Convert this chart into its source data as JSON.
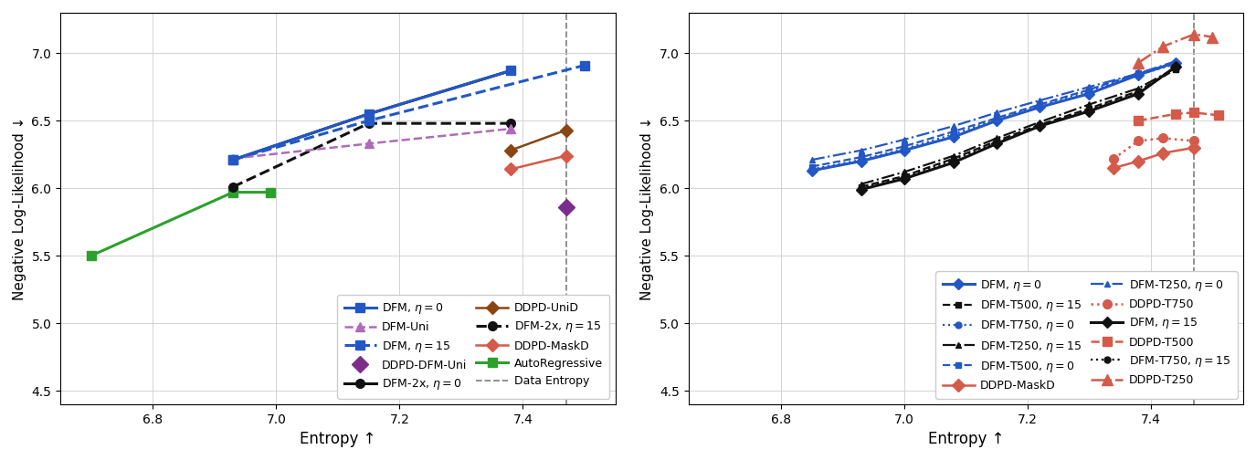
{
  "left_plot": {
    "xlabel": "Entropy ↑",
    "ylabel": "Negative Log-Likelihood ↓",
    "xlim": [
      6.65,
      7.55
    ],
    "ylim": [
      4.4,
      7.3
    ],
    "xticks": [
      6.8,
      7.0,
      7.2,
      7.4
    ],
    "yticks": [
      4.5,
      5.0,
      5.5,
      6.0,
      6.5,
      7.0
    ],
    "data_entropy_x": 7.47,
    "series": [
      {
        "label": "DFM, η = 0",
        "x": [
          6.93,
          7.15,
          7.38
        ],
        "y": [
          6.21,
          6.55,
          6.87
        ],
        "color": "#2257c5",
        "linestyle": "-",
        "marker": "s",
        "linewidth": 2.2,
        "markersize": 7,
        "zorder": 5
      },
      {
        "label": "DFM, η = 15",
        "x": [
          6.93,
          7.15,
          7.5
        ],
        "y": [
          6.21,
          6.5,
          6.91
        ],
        "color": "#2257c5",
        "linestyle": "--",
        "marker": "s",
        "linewidth": 2.2,
        "markersize": 7,
        "zorder": 4
      },
      {
        "label": "DFM-2x, η = 0",
        "x": [
          6.93,
          7.15,
          7.38
        ],
        "y": [
          6.21,
          6.55,
          6.87
        ],
        "color": "#111111",
        "linestyle": "-",
        "marker": "o",
        "linewidth": 2.2,
        "markersize": 7,
        "zorder": 3
      },
      {
        "label": "DFM-2x, η = 15",
        "x": [
          6.93,
          7.15,
          7.38
        ],
        "y": [
          6.01,
          6.48,
          6.48
        ],
        "color": "#111111",
        "linestyle": "--",
        "marker": "o",
        "linewidth": 2.2,
        "markersize": 7,
        "zorder": 3
      },
      {
        "label": "AutoRegressive",
        "x": [
          6.7,
          6.93,
          6.99
        ],
        "y": [
          5.5,
          5.97,
          5.97
        ],
        "color": "#2ca02c",
        "linestyle": "-",
        "marker": "s",
        "linewidth": 2.2,
        "markersize": 7,
        "zorder": 2
      },
      {
        "label": "DFM-Uni",
        "x": [
          6.93,
          7.15,
          7.38
        ],
        "y": [
          6.22,
          6.33,
          6.44
        ],
        "color": "#b06aba",
        "linestyle": "--",
        "marker": "^",
        "linewidth": 1.8,
        "markersize": 7,
        "zorder": 4
      },
      {
        "label": "DDPD-DFM-Uni",
        "x": [
          7.47
        ],
        "y": [
          5.86
        ],
        "color": "#7b2d8b",
        "linestyle": "none",
        "marker": "D",
        "linewidth": 1.5,
        "markersize": 9,
        "zorder": 5
      },
      {
        "label": "DDPD-UniD",
        "x": [
          7.38,
          7.47
        ],
        "y": [
          6.28,
          6.43
        ],
        "color": "#8b4513",
        "linestyle": "-",
        "marker": "D",
        "linewidth": 1.8,
        "markersize": 7,
        "zorder": 4
      },
      {
        "label": "DDPD-MaskD",
        "x": [
          7.38,
          7.47
        ],
        "y": [
          6.14,
          6.24
        ],
        "color": "#d45a4a",
        "linestyle": "-",
        "marker": "D",
        "linewidth": 1.8,
        "markersize": 7,
        "zorder": 4
      }
    ]
  },
  "right_plot": {
    "xlabel": "Entropy ↑",
    "ylabel": "Negative Log-Likelihood ↓",
    "xlim": [
      6.65,
      7.55
    ],
    "ylim": [
      4.4,
      7.3
    ],
    "xticks": [
      6.8,
      7.0,
      7.2,
      7.4
    ],
    "yticks": [
      4.5,
      5.0,
      5.5,
      6.0,
      6.5,
      7.0
    ],
    "data_entropy_x": 7.47,
    "series": [
      {
        "label": "DFM, η = 0",
        "x": [
          6.85,
          6.93,
          7.0,
          7.08,
          7.15,
          7.22,
          7.3,
          7.38,
          7.44
        ],
        "y": [
          6.13,
          6.2,
          6.28,
          6.38,
          6.5,
          6.6,
          6.7,
          6.84,
          6.93
        ],
        "color": "#2257c5",
        "linestyle": "-",
        "marker": "D",
        "linewidth": 2.2,
        "markersize": 6,
        "zorder": 5
      },
      {
        "label": "DFM-T750, η = 0",
        "x": [
          6.85,
          6.93,
          7.0,
          7.08,
          7.15,
          7.22,
          7.3,
          7.38,
          7.44
        ],
        "y": [
          6.14,
          6.21,
          6.29,
          6.4,
          6.51,
          6.61,
          6.72,
          6.84,
          6.92
        ],
        "color": "#2257c5",
        "linestyle": ":",
        "marker": "o",
        "linewidth": 1.6,
        "markersize": 5,
        "zorder": 4
      },
      {
        "label": "DFM-T500, η = 0",
        "x": [
          6.85,
          6.93,
          7.0,
          7.08,
          7.15,
          7.22,
          7.3,
          7.38,
          7.44
        ],
        "y": [
          6.16,
          6.23,
          6.31,
          6.42,
          6.52,
          6.62,
          6.73,
          6.85,
          6.93
        ],
        "color": "#2257c5",
        "linestyle": "--",
        "marker": "s",
        "linewidth": 1.6,
        "markersize": 5,
        "zorder": 4
      },
      {
        "label": "DFM-T250, η = 0",
        "x": [
          6.85,
          6.93,
          7.0,
          7.08,
          7.15,
          7.22,
          7.3,
          7.38,
          7.44
        ],
        "y": [
          6.21,
          6.28,
          6.36,
          6.46,
          6.56,
          6.65,
          6.75,
          6.85,
          6.94
        ],
        "color": "#2257c5",
        "linestyle": "-.",
        "marker": "^",
        "linewidth": 1.6,
        "markersize": 5,
        "zorder": 4
      },
      {
        "label": "DFM, η = 15",
        "x": [
          6.93,
          7.0,
          7.08,
          7.15,
          7.22,
          7.3,
          7.38,
          7.44
        ],
        "y": [
          5.99,
          6.07,
          6.19,
          6.33,
          6.46,
          6.57,
          6.7,
          6.9
        ],
        "color": "#111111",
        "linestyle": "-",
        "marker": "D",
        "linewidth": 2.2,
        "markersize": 6,
        "zorder": 5
      },
      {
        "label": "DFM-T750, η = 15",
        "x": [
          6.93,
          7.0,
          7.08,
          7.15,
          7.22,
          7.3,
          7.38,
          7.44
        ],
        "y": [
          6.0,
          6.08,
          6.21,
          6.34,
          6.46,
          6.58,
          6.71,
          6.89
        ],
        "color": "#111111",
        "linestyle": ":",
        "marker": "o",
        "linewidth": 1.6,
        "markersize": 5,
        "zorder": 4
      },
      {
        "label": "DFM-T500, η = 15",
        "x": [
          6.93,
          7.0,
          7.08,
          7.15,
          7.22,
          7.3,
          7.38,
          7.44
        ],
        "y": [
          6.01,
          6.09,
          6.22,
          6.35,
          6.47,
          6.59,
          6.72,
          6.88
        ],
        "color": "#111111",
        "linestyle": "--",
        "marker": "s",
        "linewidth": 1.6,
        "markersize": 5,
        "zorder": 4
      },
      {
        "label": "DFM-T250, η = 15",
        "x": [
          6.93,
          7.0,
          7.08,
          7.15,
          7.22,
          7.3,
          7.38,
          7.44
        ],
        "y": [
          6.03,
          6.12,
          6.24,
          6.37,
          6.49,
          6.62,
          6.74,
          6.89
        ],
        "color": "#111111",
        "linestyle": "-.",
        "marker": "^",
        "linewidth": 1.6,
        "markersize": 5,
        "zorder": 4
      },
      {
        "label": "DDPD-MaskD",
        "x": [
          7.34,
          7.38,
          7.42,
          7.47
        ],
        "y": [
          6.15,
          6.2,
          6.26,
          6.3
        ],
        "color": "#d45a4a",
        "linestyle": "-",
        "marker": "D",
        "linewidth": 1.8,
        "markersize": 7,
        "zorder": 6
      },
      {
        "label": "DDPD-T750",
        "x": [
          7.34,
          7.38,
          7.42,
          7.47
        ],
        "y": [
          6.22,
          6.35,
          6.37,
          6.35
        ],
        "color": "#d45a4a",
        "linestyle": ":",
        "marker": "o",
        "linewidth": 1.8,
        "markersize": 7,
        "zorder": 6
      },
      {
        "label": "DDPD-T500",
        "x": [
          7.38,
          7.44,
          7.47,
          7.51
        ],
        "y": [
          6.5,
          6.55,
          6.56,
          6.54
        ],
        "color": "#d45a4a",
        "linestyle": "--",
        "marker": "s",
        "linewidth": 1.8,
        "markersize": 7,
        "zorder": 6
      },
      {
        "label": "DDPD-T250",
        "x": [
          7.38,
          7.42,
          7.47,
          7.5
        ],
        "y": [
          6.93,
          7.05,
          7.14,
          7.12
        ],
        "color": "#d45a4a",
        "linestyle": "-.",
        "marker": "^",
        "linewidth": 1.8,
        "markersize": 8,
        "zorder": 6
      }
    ]
  }
}
